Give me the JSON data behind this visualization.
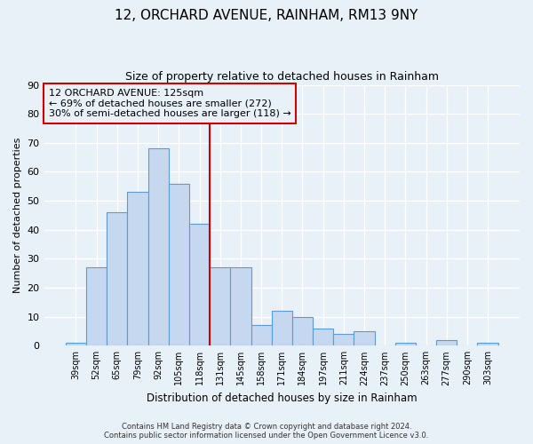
{
  "title": "12, ORCHARD AVENUE, RAINHAM, RM13 9NY",
  "subtitle": "Size of property relative to detached houses in Rainham",
  "xlabel": "Distribution of detached houses by size in Rainham",
  "ylabel": "Number of detached properties",
  "bar_labels": [
    "39sqm",
    "52sqm",
    "65sqm",
    "79sqm",
    "92sqm",
    "105sqm",
    "118sqm",
    "131sqm",
    "145sqm",
    "158sqm",
    "171sqm",
    "184sqm",
    "197sqm",
    "211sqm",
    "224sqm",
    "237sqm",
    "250sqm",
    "263sqm",
    "277sqm",
    "290sqm",
    "303sqm"
  ],
  "bar_values": [
    1,
    27,
    46,
    53,
    68,
    56,
    42,
    27,
    27,
    7,
    12,
    10,
    6,
    4,
    5,
    0,
    1,
    0,
    2,
    0,
    1
  ],
  "bar_color": "#c5d8f0",
  "bar_edge_color": "#5b9bd5",
  "vline_x": 6.5,
  "vline_color": "#cc0000",
  "annotation_title": "12 ORCHARD AVENUE: 125sqm",
  "annotation_line1": "← 69% of detached houses are smaller (272)",
  "annotation_line2": "30% of semi-detached houses are larger (118) →",
  "annotation_box_color": "#cc0000",
  "ylim": [
    0,
    90
  ],
  "yticks": [
    0,
    10,
    20,
    30,
    40,
    50,
    60,
    70,
    80,
    90
  ],
  "footnote1": "Contains HM Land Registry data © Crown copyright and database right 2024.",
  "footnote2": "Contains public sector information licensed under the Open Government Licence v3.0.",
  "background_color": "#e8f0f8",
  "grid_color": "#ffffff"
}
